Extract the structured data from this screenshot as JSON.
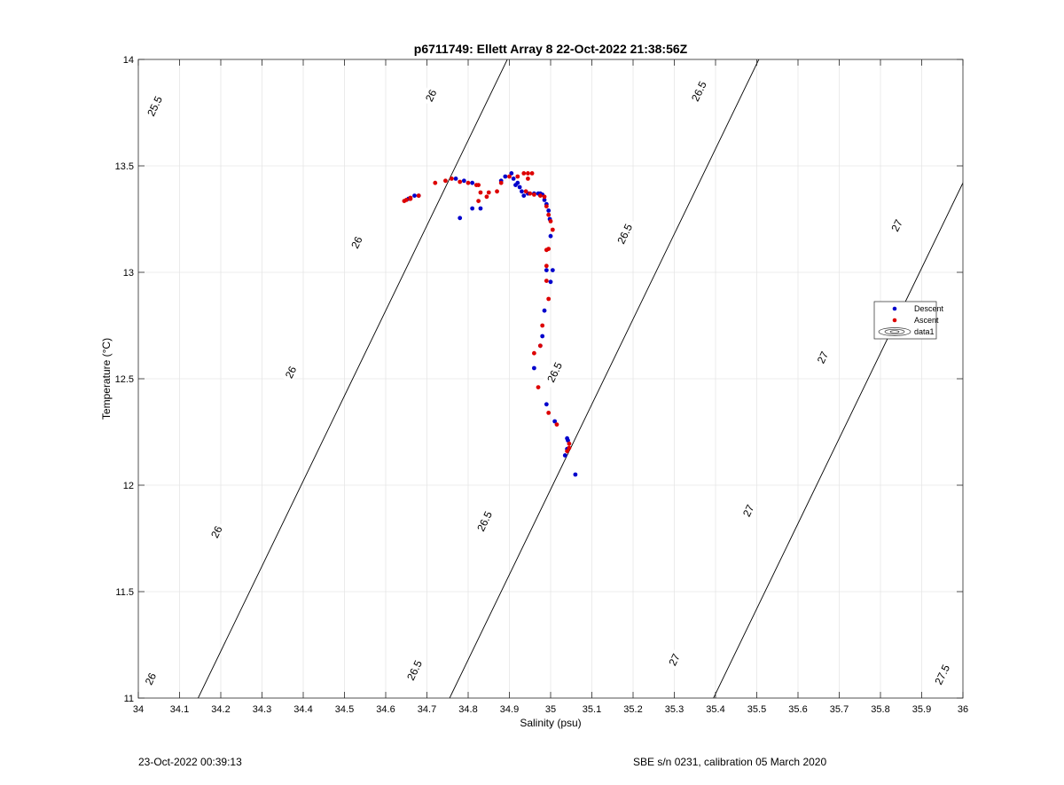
{
  "chart_data": {
    "type": "scatter",
    "title": "p6711749: Ellett Array 8 22-Oct-2022 21:38:56Z",
    "xlabel": "Salinity (psu)",
    "ylabel": "Temperature (°C)",
    "xlim": [
      34,
      36
    ],
    "ylim": [
      11,
      14
    ],
    "xticks": [
      "34",
      "34.1",
      "34.2",
      "34.3",
      "34.4",
      "34.5",
      "34.6",
      "34.7",
      "34.8",
      "34.9",
      "35",
      "35.1",
      "35.2",
      "35.3",
      "35.4",
      "35.5",
      "35.6",
      "35.7",
      "35.8",
      "35.9",
      "36"
    ],
    "yticks": [
      "11",
      "11.5",
      "12",
      "12.5",
      "13",
      "13.5",
      "14"
    ],
    "grid": true,
    "legend_position": "right",
    "legend": [
      "Descent",
      "Ascent",
      "data1"
    ],
    "series": [
      {
        "name": "Descent",
        "color": "#0000cc",
        "points": [
          [
            34.655,
            13.345
          ],
          [
            34.67,
            13.36
          ],
          [
            34.68,
            13.36
          ],
          [
            34.77,
            13.44
          ],
          [
            34.78,
            13.255
          ],
          [
            34.79,
            13.43
          ],
          [
            34.81,
            13.3
          ],
          [
            34.83,
            13.3
          ],
          [
            34.81,
            13.42
          ],
          [
            34.88,
            13.43
          ],
          [
            34.89,
            13.45
          ],
          [
            34.905,
            13.465
          ],
          [
            34.91,
            13.44
          ],
          [
            34.915,
            13.41
          ],
          [
            34.92,
            13.42
          ],
          [
            34.925,
            13.4
          ],
          [
            34.93,
            13.38
          ],
          [
            34.935,
            13.36
          ],
          [
            34.945,
            13.37
          ],
          [
            34.96,
            13.37
          ],
          [
            34.97,
            13.37
          ],
          [
            34.975,
            13.37
          ],
          [
            34.98,
            13.365
          ],
          [
            34.985,
            13.34
          ],
          [
            34.99,
            13.32
          ],
          [
            34.995,
            13.29
          ],
          [
            34.998,
            13.25
          ],
          [
            35.0,
            13.17
          ],
          [
            35.005,
            13.01
          ],
          [
            35.0,
            12.955
          ],
          [
            34.99,
            13.01
          ],
          [
            34.985,
            12.82
          ],
          [
            34.98,
            12.7
          ],
          [
            34.975,
            12.655
          ],
          [
            34.96,
            12.55
          ],
          [
            34.99,
            12.38
          ],
          [
            35.01,
            12.3
          ],
          [
            35.035,
            12.14
          ],
          [
            35.04,
            12.17
          ],
          [
            35.042,
            12.21
          ],
          [
            35.04,
            12.22
          ],
          [
            35.06,
            12.05
          ]
        ]
      },
      {
        "name": "Ascent",
        "color": "#dd0000",
        "points": [
          [
            34.645,
            13.335
          ],
          [
            34.65,
            13.34
          ],
          [
            34.66,
            13.345
          ],
          [
            34.66,
            13.35
          ],
          [
            34.68,
            13.36
          ],
          [
            34.72,
            13.42
          ],
          [
            34.745,
            13.43
          ],
          [
            34.76,
            13.44
          ],
          [
            34.78,
            13.425
          ],
          [
            34.8,
            13.42
          ],
          [
            34.82,
            13.41
          ],
          [
            34.825,
            13.41
          ],
          [
            34.83,
            13.375
          ],
          [
            34.825,
            13.335
          ],
          [
            34.845,
            13.355
          ],
          [
            34.85,
            13.375
          ],
          [
            34.87,
            13.38
          ],
          [
            34.88,
            13.42
          ],
          [
            34.9,
            13.45
          ],
          [
            34.92,
            13.45
          ],
          [
            34.935,
            13.465
          ],
          [
            34.945,
            13.465
          ],
          [
            34.955,
            13.465
          ],
          [
            34.945,
            13.44
          ],
          [
            34.94,
            13.38
          ],
          [
            34.95,
            13.37
          ],
          [
            34.96,
            13.365
          ],
          [
            34.975,
            13.36
          ],
          [
            34.985,
            13.355
          ],
          [
            34.99,
            13.31
          ],
          [
            34.995,
            13.27
          ],
          [
            35.0,
            13.24
          ],
          [
            35.005,
            13.2
          ],
          [
            34.995,
            13.11
          ],
          [
            34.99,
            13.105
          ],
          [
            34.99,
            13.03
          ],
          [
            34.99,
            12.96
          ],
          [
            34.995,
            12.875
          ],
          [
            34.98,
            12.75
          ],
          [
            34.975,
            12.655
          ],
          [
            34.96,
            12.62
          ],
          [
            34.97,
            12.46
          ],
          [
            34.995,
            12.34
          ],
          [
            35.015,
            12.285
          ],
          [
            35.04,
            12.16
          ],
          [
            35.045,
            12.175
          ],
          [
            35.045,
            12.195
          ]
        ]
      }
    ],
    "density_contours": [
      {
        "sigma": 25.5,
        "labels": [
          {
            "text": "25.5",
            "at": [
              34.04,
              13.78
            ]
          }
        ]
      },
      {
        "sigma": 26,
        "labels": [
          {
            "text": "26",
            "at": [
              34.03,
              11.09
            ]
          },
          {
            "text": "26",
            "at": [
              34.19,
              11.78
            ]
          },
          {
            "text": "26",
            "at": [
              34.37,
              12.53
            ]
          },
          {
            "text": "26",
            "at": [
              34.53,
              13.14
            ]
          },
          {
            "text": "26",
            "at": [
              34.71,
              13.83
            ]
          }
        ]
      },
      {
        "sigma": 26.5,
        "labels": [
          {
            "text": "26.5",
            "at": [
              34.67,
              11.13
            ]
          },
          {
            "text": "26.5",
            "at": [
              34.84,
              11.83
            ]
          },
          {
            "text": "26.5",
            "at": [
              35.01,
              12.53
            ]
          },
          {
            "text": "26.5",
            "at": [
              35.18,
              13.18
            ]
          },
          {
            "text": "26.5",
            "at": [
              35.36,
              13.85
            ]
          }
        ]
      },
      {
        "sigma": 27,
        "labels": [
          {
            "text": "27",
            "at": [
              35.3,
              11.18
            ]
          },
          {
            "text": "27",
            "at": [
              35.48,
              11.88
            ]
          },
          {
            "text": "27",
            "at": [
              35.66,
              12.6
            ]
          },
          {
            "text": "27",
            "at": [
              35.84,
              13.22
            ]
          }
        ]
      },
      {
        "sigma": 27.5,
        "labels": [
          {
            "text": "27.5",
            "at": [
              35.95,
              11.11
            ]
          }
        ]
      }
    ]
  },
  "footer": {
    "left": "23-Oct-2022 00:39:13",
    "right": "SBE s/n 0231, calibration 05 March 2020"
  }
}
